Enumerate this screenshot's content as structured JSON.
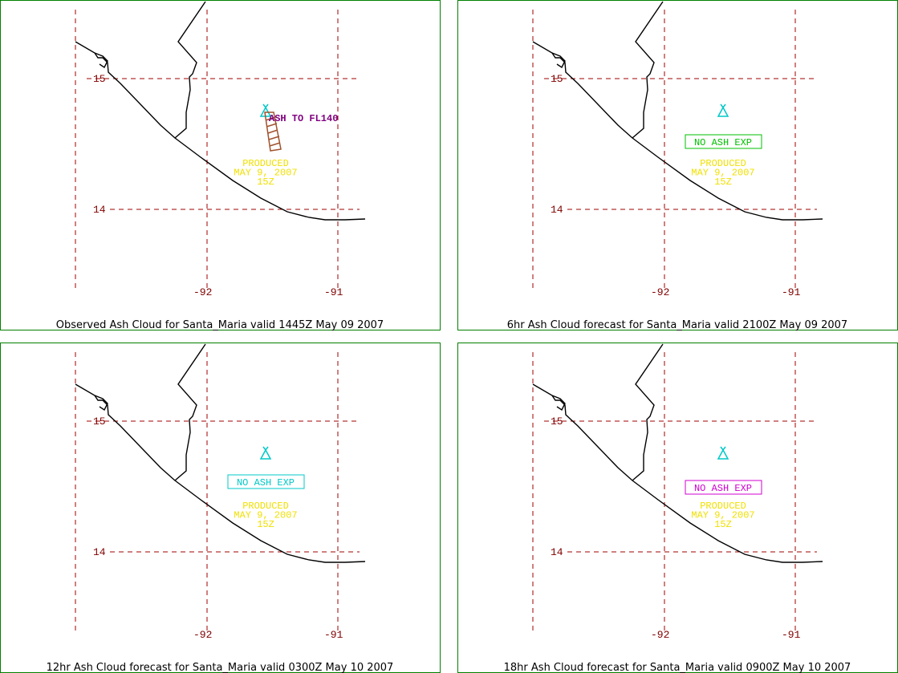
{
  "panels": [
    {
      "caption": "Observed Ash Cloud for Santa_Maria valid 1445Z May 09 2007",
      "lat_labels": [
        "15",
        "14"
      ],
      "lon_labels": [
        "-92",
        "-91"
      ],
      "annotation": "ASH TO FL140",
      "annotation_color": "#800080",
      "produced": [
        "PRODUCED",
        "MAY 9, 2007",
        "15Z"
      ]
    },
    {
      "caption": "6hr Ash Cloud forecast for Santa_Maria valid 2100Z May 09 2007",
      "lat_labels": [
        "15",
        "14"
      ],
      "lon_labels": [
        "-92",
        "-91"
      ],
      "status": "NO ASH EXP",
      "status_color": "#00c000",
      "produced": [
        "PRODUCED",
        "MAY 9, 2007",
        "15Z"
      ]
    },
    {
      "caption": "12hr Ash Cloud forecast for Santa_Maria valid 0300Z May 10 2007",
      "lat_labels": [
        "15",
        "14"
      ],
      "lon_labels": [
        "-92",
        "-91"
      ],
      "status": "NO ASH EXP",
      "status_color": "#00c8c8",
      "produced": [
        "PRODUCED",
        "MAY 9, 2007",
        "15Z"
      ]
    },
    {
      "caption": "18hr Ash Cloud forecast for Santa_Maria valid 0900Z May 10 2007",
      "lat_labels": [
        "15",
        "14"
      ],
      "lon_labels": [
        "-92",
        "-91"
      ],
      "status": "NO ASH EXP",
      "status_color": "#d000d0",
      "produced": [
        "PRODUCED",
        "MAY 9, 2007",
        "15Z"
      ]
    }
  ]
}
